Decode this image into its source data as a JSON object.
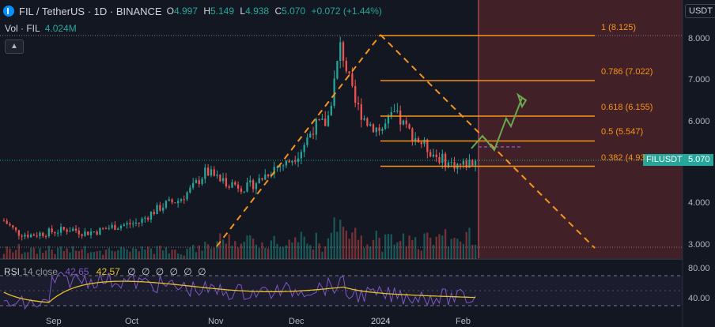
{
  "header": {
    "symbol_title": "FIL / TetherUS · 1D · BINANCE",
    "open_label": "O",
    "open": "4.997",
    "high_label": "H",
    "high": "5.149",
    "low_label": "L",
    "low": "4.938",
    "close_label": "C",
    "close": "5.070",
    "change": "+0.072 (+1.44%)"
  },
  "volume": {
    "label": "Vol · FIL",
    "value": "4.024M"
  },
  "collapse_icon": "chevron-up-icon",
  "currency_button": "USDT",
  "price_axis": [
    "8.000",
    "7.000",
    "6.000",
    "5.000",
    "4.000",
    "3.000"
  ],
  "rsi_axis": [
    "80.00",
    "40.00"
  ],
  "time_axis": [
    "Sep",
    "Oct",
    "Nov",
    "Dec",
    "2024",
    "Feb"
  ],
  "current_price": {
    "symbol": "FILUSDT",
    "value": "5.070"
  },
  "fib_levels": [
    {
      "label": "1 (8.125)",
      "price": 8.125
    },
    {
      "label": "0.786 (7.022)",
      "price": 7.022
    },
    {
      "label": "0.618 (6.155)",
      "price": 6.155
    },
    {
      "label": "0.5 (5.547)",
      "price": 5.547
    },
    {
      "label": "0.382 (4.93",
      "price": 4.93
    }
  ],
  "rsi": {
    "label": "RSI",
    "params": "14 close",
    "value": "42.65",
    "ma_value": "42.57",
    "extra": "∅ ∅ ∅ ∅ ∅ ∅"
  },
  "colors": {
    "up": "#26a69a",
    "down": "#ef5350",
    "fib": "#f7931a",
    "rsi": "#7e57c2",
    "rsi_ma": "#e6c229",
    "arrow": "#6aa84f",
    "forecast_zone": "#4a2328"
  },
  "chart_data": {
    "type": "candlestick",
    "ylim": [
      2.9,
      8.3
    ],
    "x_ticks": [
      "Sep",
      "Oct",
      "Nov",
      "Dec",
      "2024",
      "Feb"
    ],
    "approx_close_path": [
      3.6,
      3.3,
      3.25,
      3.3,
      3.35,
      3.4,
      3.3,
      3.35,
      3.45,
      3.5,
      3.55,
      3.8,
      4.0,
      4.1,
      4.4,
      4.8,
      4.6,
      4.5,
      4.4,
      4.6,
      4.9,
      5.0,
      5.3,
      5.9,
      6.0,
      7.9,
      6.5,
      6.0,
      5.8,
      6.2,
      5.8,
      5.5,
      5.2,
      5.0,
      4.95,
      5.07
    ]
  }
}
